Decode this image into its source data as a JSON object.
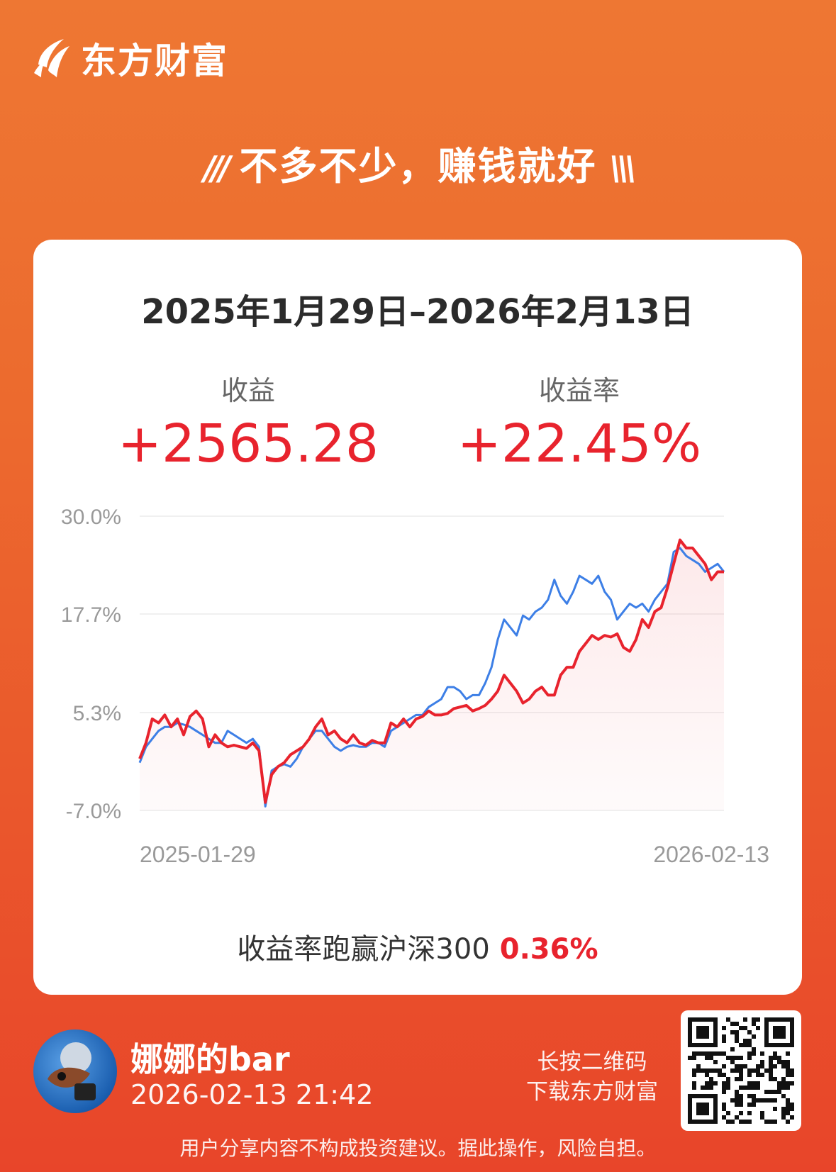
{
  "brand": {
    "name": "东方财富"
  },
  "slogan": {
    "left_mark": "///",
    "text": "不多不少，赚钱就好",
    "right_mark": "\\\\\\"
  },
  "card": {
    "date_range": "2025年1月29日–2026年2月13日",
    "profit_label": "收益",
    "profit_value": "+2565.28",
    "rate_label": "收益率",
    "rate_value": "+22.45%",
    "beat_text": "收益率跑赢沪深300",
    "beat_value": "0.36%"
  },
  "chart_data": {
    "type": "line",
    "x_start_label": "2025-01-29",
    "x_end_label": "2026-02-13",
    "y_ticks": [
      "30.0%",
      "17.7%",
      "5.3%",
      "-7.0%"
    ],
    "ylim": [
      -7.0,
      30.0
    ],
    "grid": true,
    "series": [
      {
        "color": "#e8232d",
        "values": [
          -0.5,
          1.5,
          4.5,
          4.0,
          5.0,
          3.5,
          4.5,
          2.5,
          4.8,
          5.5,
          4.5,
          1.0,
          2.5,
          1.5,
          1.0,
          1.2,
          1.0,
          0.8,
          1.5,
          0.5,
          -6.0,
          -2.5,
          -1.5,
          -1.0,
          0.0,
          0.5,
          1.0,
          2.0,
          3.5,
          4.5,
          2.5,
          3.0,
          2.0,
          1.5,
          2.5,
          1.5,
          1.2,
          1.8,
          1.5,
          1.5,
          4.0,
          3.5,
          4.5,
          3.5,
          4.5,
          4.8,
          5.5,
          5.0,
          5.0,
          5.2,
          5.8,
          6.0,
          6.2,
          5.5,
          5.8,
          6.2,
          7.0,
          8.0,
          10.0,
          9.0,
          8.0,
          6.5,
          7.0,
          8.0,
          8.5,
          7.5,
          7.5,
          10.0,
          11.0,
          11.0,
          13.0,
          14.0,
          15.0,
          14.5,
          15.0,
          14.8,
          15.2,
          13.5,
          13.0,
          14.5,
          17.0,
          16.0,
          18.0,
          18.5,
          21.0,
          24.0,
          27.0,
          26.0,
          26.0,
          25.0,
          24.0,
          22.0,
          23.0,
          23.0
        ]
      },
      {
        "color": "#3d7fe6",
        "values": [
          -1.0,
          1.0,
          2.0,
          3.0,
          3.5,
          3.5,
          4.0,
          3.8,
          3.5,
          3.0,
          2.5,
          2.0,
          1.5,
          1.5,
          3.0,
          2.5,
          2.0,
          1.5,
          2.0,
          1.0,
          -6.5,
          -2.0,
          -1.5,
          -1.2,
          -1.5,
          -0.5,
          1.0,
          2.0,
          3.0,
          3.0,
          2.0,
          1.0,
          0.5,
          1.0,
          1.2,
          1.0,
          1.0,
          1.5,
          1.5,
          1.0,
          3.0,
          3.5,
          4.0,
          4.5,
          5.0,
          5.0,
          6.0,
          6.5,
          7.0,
          8.5,
          8.5,
          8.0,
          7.0,
          7.5,
          7.5,
          9.0,
          11.0,
          14.5,
          17.0,
          16.0,
          15.0,
          17.5,
          17.0,
          18.0,
          18.5,
          19.5,
          22.0,
          20.0,
          19.0,
          20.5,
          22.5,
          22.0,
          21.5,
          22.5,
          20.5,
          19.5,
          17.0,
          18.0,
          19.0,
          18.5,
          19.0,
          18.0,
          19.5,
          20.5,
          21.5,
          25.5,
          26.0,
          25.0,
          24.5,
          24.0,
          23.0,
          23.5,
          24.0,
          23.0
        ]
      }
    ]
  },
  "user": {
    "name": "娜娜的bar",
    "timestamp": "2026-02-13 21:42"
  },
  "qr": {
    "hint_line1": "长按二维码",
    "hint_line2": "下载东方财富"
  },
  "disclaimer": "用户分享内容不构成投资建议。据此操作，风险自担。"
}
